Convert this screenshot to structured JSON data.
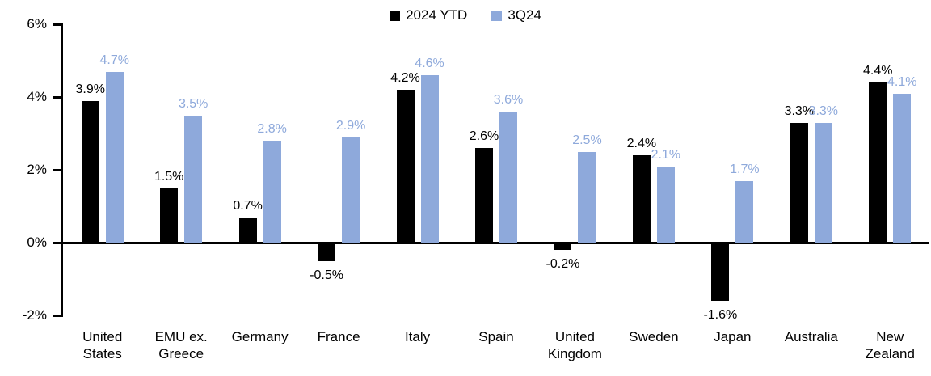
{
  "colors": {
    "background": "#ffffff",
    "axis": "#000000",
    "series_2024_ytd": "#000000",
    "series_3q24": "#8EA9DB"
  },
  "chart_data": {
    "type": "bar",
    "title": "",
    "xlabel": "",
    "ylabel": "",
    "ylim": [
      -2,
      6
    ],
    "yticks": [
      "6%",
      "4%",
      "2%",
      "0%",
      "-2%"
    ],
    "ytick_values": [
      6,
      4,
      2,
      0,
      -2
    ],
    "grid": false,
    "legend_position": "top-center",
    "categories": [
      "United States",
      "EMU ex. Greece",
      "Germany",
      "France",
      "Italy",
      "Spain",
      "United Kingdom",
      "Sweden",
      "Japan",
      "Australia",
      "New Zealand"
    ],
    "series": [
      {
        "name": "2024 YTD",
        "color": "#000000",
        "values": [
          3.9,
          1.5,
          0.7,
          -0.5,
          4.2,
          2.6,
          -0.2,
          2.4,
          -1.6,
          3.3,
          4.4
        ],
        "labels": [
          "3.9%",
          "1.5%",
          "0.7%",
          "-0.5%",
          "4.2%",
          "2.6%",
          "-0.2%",
          "2.4%",
          "-1.6%",
          "3.3%",
          "4.4%"
        ]
      },
      {
        "name": "3Q24",
        "color": "#8EA9DB",
        "values": [
          4.7,
          3.5,
          2.8,
          2.9,
          4.6,
          3.6,
          2.5,
          2.1,
          1.7,
          3.3,
          4.1
        ],
        "labels": [
          "4.7%",
          "3.5%",
          "2.8%",
          "2.9%",
          "4.6%",
          "3.6%",
          "2.5%",
          "2.1%",
          "1.7%",
          "3.3%",
          "4.1%"
        ]
      }
    ]
  }
}
